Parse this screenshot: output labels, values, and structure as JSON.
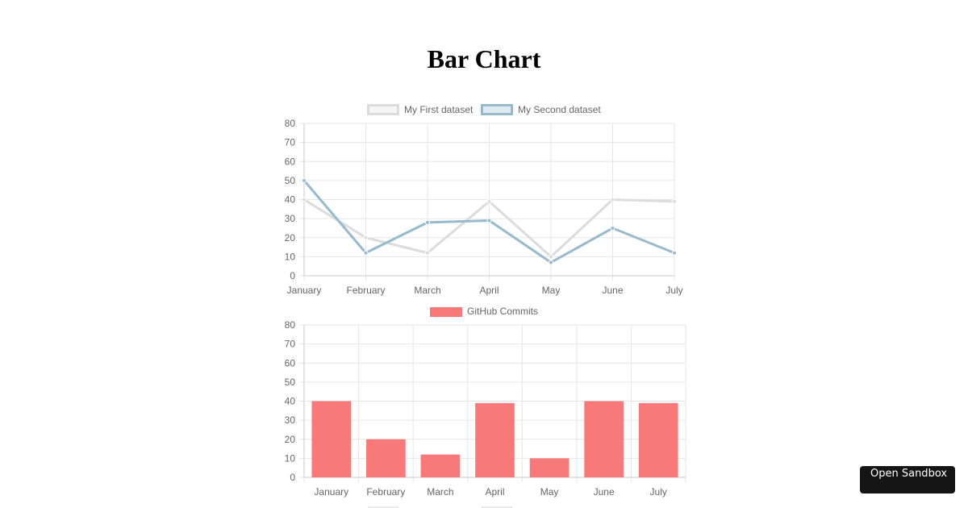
{
  "page": {
    "title": "Bar Chart"
  },
  "open_sandbox": {
    "label": "Open Sandbox"
  },
  "chart_data": [
    {
      "type": "line",
      "categories": [
        "January",
        "February",
        "March",
        "April",
        "May",
        "June",
        "July"
      ],
      "ylim": [
        0,
        80
      ],
      "yticks": [
        0,
        10,
        20,
        30,
        40,
        50,
        60,
        70,
        80
      ],
      "grid": true,
      "legend_position": "top",
      "series": [
        {
          "name": "My First dataset",
          "values": [
            40,
            20,
            12,
            39,
            10,
            40,
            39
          ],
          "color": "#dcdcdc"
        },
        {
          "name": "My Second dataset",
          "values": [
            50,
            12,
            28,
            29,
            7,
            25,
            12
          ],
          "color": "#97bbcd"
        }
      ]
    },
    {
      "type": "bar",
      "categories": [
        "January",
        "February",
        "March",
        "April",
        "May",
        "June",
        "July"
      ],
      "ylim": [
        0,
        80
      ],
      "yticks": [
        0,
        10,
        20,
        30,
        40,
        50,
        60,
        70,
        80
      ],
      "grid": true,
      "legend_position": "top",
      "series": [
        {
          "name": "GitHub Commits",
          "values": [
            40,
            20,
            12,
            39,
            10,
            40,
            39
          ],
          "color": "#f87979"
        }
      ]
    }
  ]
}
